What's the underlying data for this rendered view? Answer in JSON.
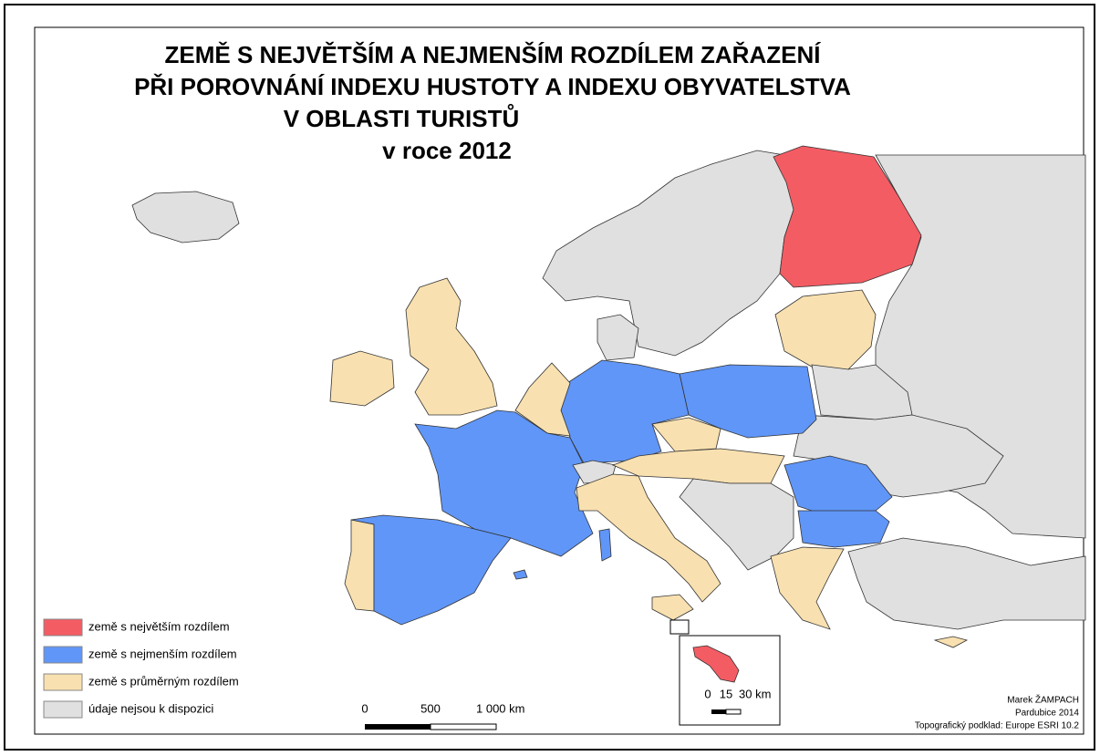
{
  "title": {
    "lines": [
      "ZEMĚ S NEJVĚTŠÍM A NEJMENŠÍM ROZDÍLEM ZAŘAZENÍ",
      "PŘI POROVNÁNÍ INDEXU HUSTOTY A INDEXU OBYVATELSTVA",
      "V OBLASTI TURISTŮ",
      "v roce 2012"
    ]
  },
  "legend": [
    {
      "label": "země s největším rozdílem",
      "color": "#f45c64"
    },
    {
      "label": "země s nejmenším rozdílem",
      "color": "#6096f8"
    },
    {
      "label": "země s průměrným rozdílem",
      "color": "#f8e0b0"
    },
    {
      "label": "údaje nejsou k dispozici",
      "color": "#e0e0e0"
    }
  ],
  "scale_bar": {
    "labels": [
      "0",
      "500",
      "1 000 km"
    ]
  },
  "inset_scale_bar": {
    "labels": [
      "0",
      "15",
      "30 km"
    ]
  },
  "credits": [
    "Marek ŽAMPACH",
    "Pardubice 2014",
    "Topografický podklad: Europe ESRI 10.2"
  ]
}
